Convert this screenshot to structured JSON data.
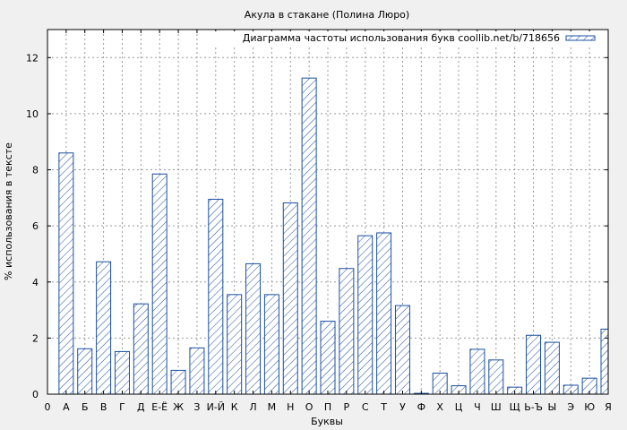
{
  "chart_data": {
    "type": "bar",
    "title": "Акула в стакане (Полина Люро)",
    "xlabel": "Буквы",
    "ylabel": "% использования в тексте",
    "ylim": [
      0,
      13
    ],
    "yticks": [
      0,
      2,
      4,
      6,
      8,
      10,
      12
    ],
    "grid": true,
    "legend_position": "top-right",
    "series": [
      {
        "name": "Диаграмма частоты использования букв coollib.net/b/718656",
        "color": "#1a4fa0",
        "pattern": "diagonal-hatch"
      }
    ],
    "categories": [
      "0",
      "А",
      "Б",
      "В",
      "Г",
      "Д",
      "Е-Ё",
      "Ж",
      "З",
      "И-Й",
      "К",
      "Л",
      "М",
      "Н",
      "О",
      "П",
      "Р",
      "С",
      "Т",
      "У",
      "Ф",
      "Х",
      "Ц",
      "Ч",
      "Ш",
      "Щ",
      "Ь-Ъ",
      "Ы",
      "Э",
      "Ю",
      "Я"
    ],
    "values": [
      0,
      8.6,
      1.62,
      4.72,
      1.52,
      3.22,
      7.85,
      0.85,
      1.65,
      6.95,
      3.55,
      4.65,
      3.55,
      6.82,
      11.27,
      2.6,
      4.48,
      5.65,
      5.75,
      3.16,
      0.03,
      0.75,
      0.3,
      1.6,
      1.22,
      0.25,
      2.1,
      1.85,
      0.32,
      0.57,
      2.32
    ]
  }
}
